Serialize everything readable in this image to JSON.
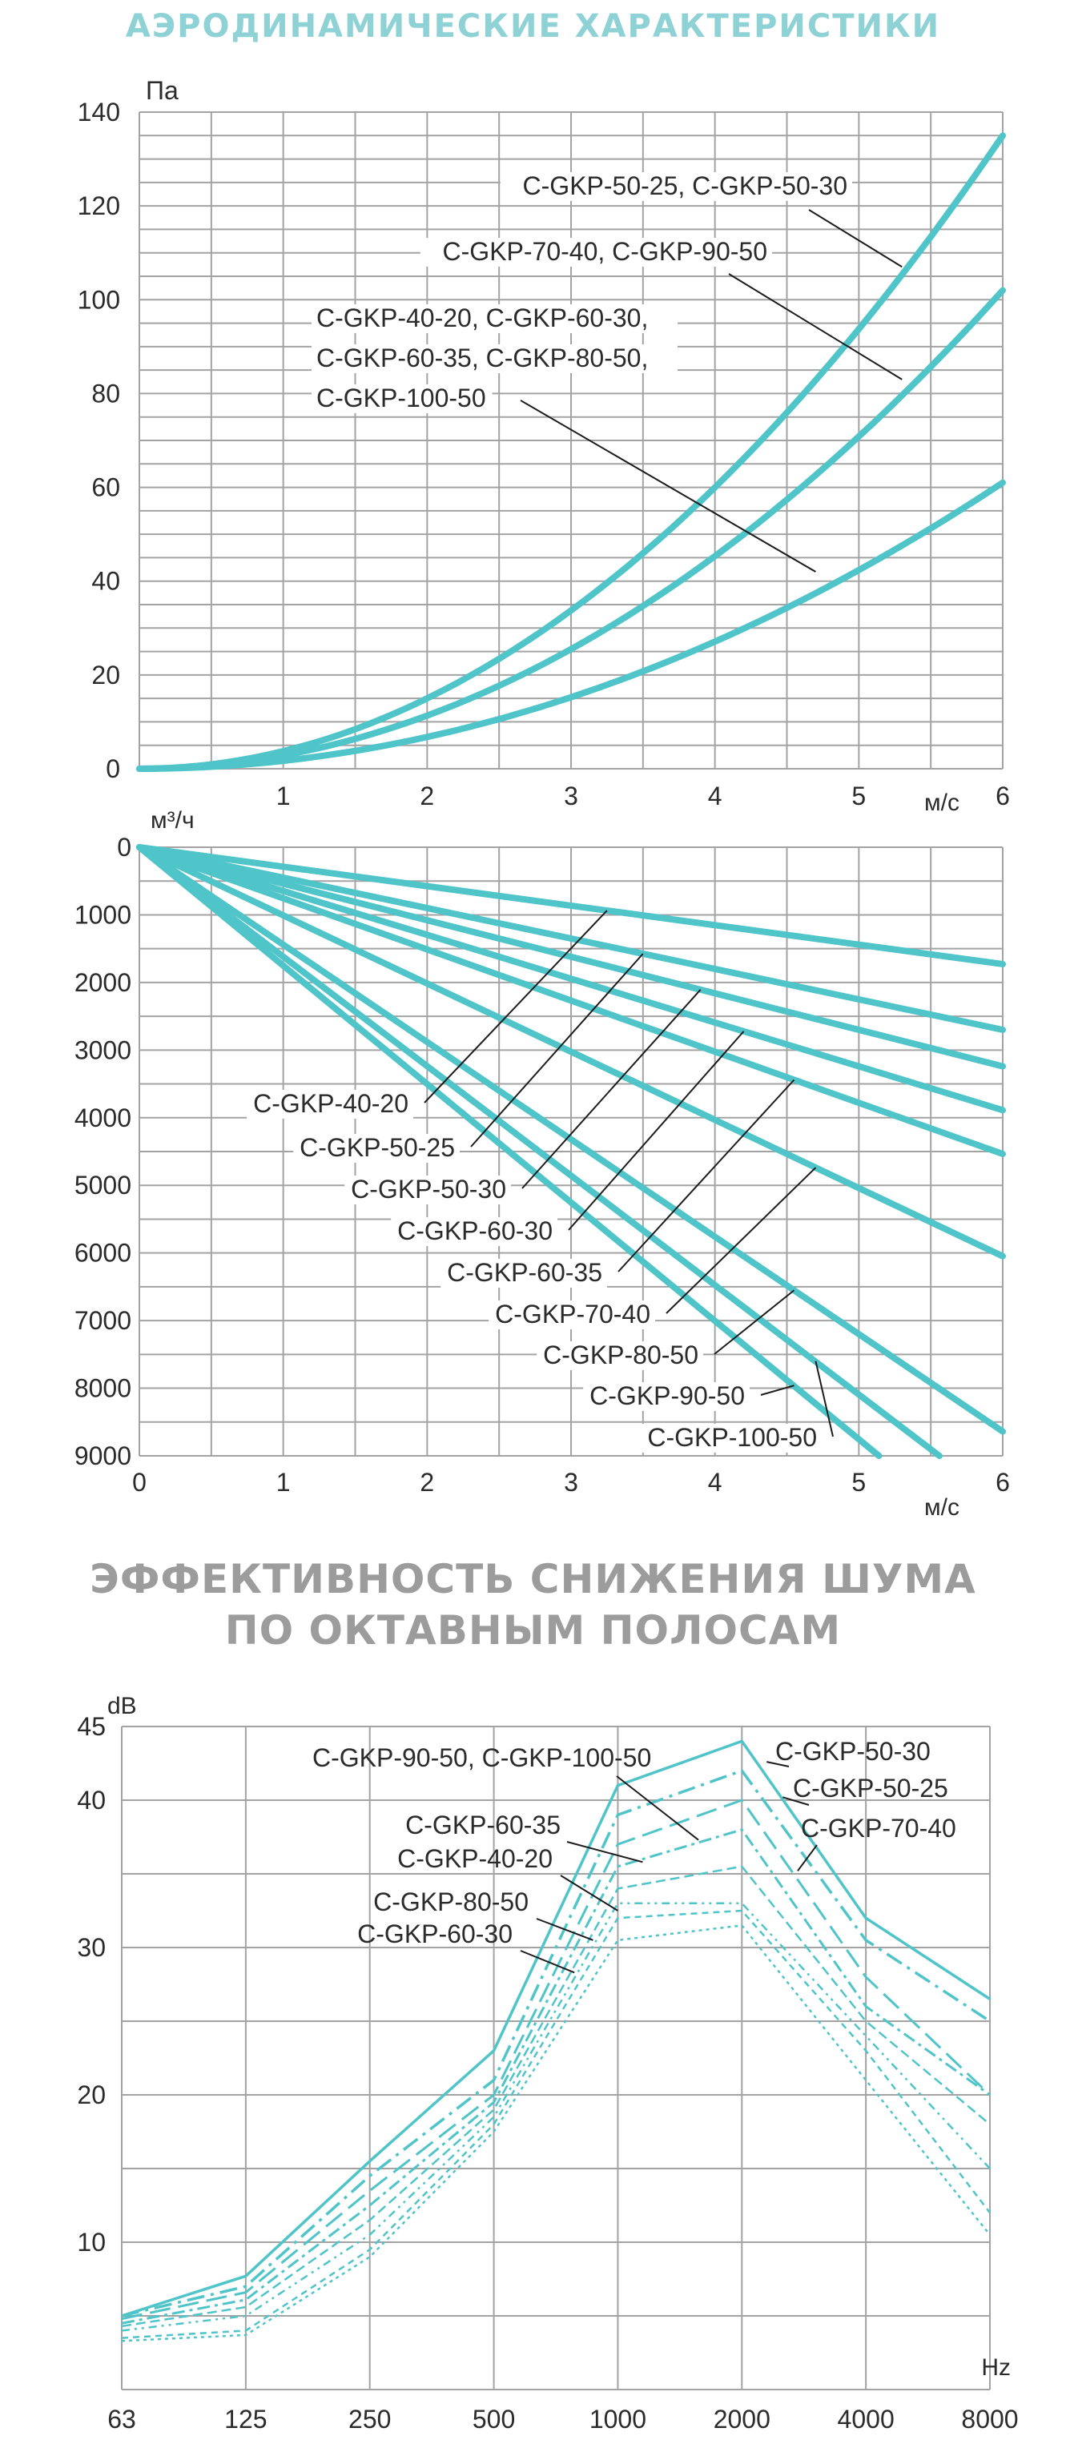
{
  "titles": {
    "aero": "АЭРОДИНАМИЧЕСКИЕ ХАРАКТЕРИСТИКИ",
    "noise_line1": "ЭФФЕКТИВНОСТЬ СНИЖЕНИЯ ШУМА",
    "noise_line2": "ПО ОКТАВНЫМ ПОЛОСАМ"
  },
  "colors": {
    "curve": "#4fc4c9",
    "grid": "#a3a3a3",
    "leader": "#1c1c1c"
  },
  "chart_data": [
    {
      "type": "line",
      "xlabel": "м/с",
      "ylabel": "Па",
      "xlim": [
        0,
        6
      ],
      "ylim": [
        0,
        140
      ],
      "x_ticks": [
        "1",
        "2",
        "3",
        "4",
        "5",
        "6"
      ],
      "y_ticks": [
        "0",
        "20",
        "40",
        "60",
        "80",
        "100",
        "120",
        "140"
      ],
      "grid": true,
      "series": [
        {
          "name": "C-GKP-50-25, C-GKP-50-30",
          "x": [
            0,
            1,
            2,
            3,
            4,
            5,
            6
          ],
          "y": [
            0,
            4,
            15,
            34,
            60,
            94,
            135
          ]
        },
        {
          "name": "C-GKP-70-40, C-GKP-90-50",
          "x": [
            0,
            1,
            2,
            3,
            4,
            5,
            6
          ],
          "y": [
            0,
            3,
            11,
            25,
            45,
            71,
            102
          ]
        },
        {
          "name": "C-GKP-40-20, C-GKP-60-30, C-GKP-60-35, C-GKP-80-50, C-GKP-100-50",
          "x": [
            0,
            1,
            2,
            3,
            4,
            5,
            6
          ],
          "y": [
            0,
            1.7,
            6.7,
            15,
            27,
            42,
            61
          ]
        }
      ],
      "annotations": [
        {
          "label": "C-GKP-50-25, C-GKP-50-30",
          "target_x": 5.3,
          "target_y": 107
        },
        {
          "label": "C-GKP-70-40, C-GKP-90-50",
          "target_x": 5.3,
          "target_y": 83
        },
        {
          "lines": [
            "C-GKP-40-20, C-GKP-60-30,",
            "C-GKP-60-35, C-GKP-80-50,",
            "C-GKP-100-50"
          ],
          "target_x": 4.7,
          "target_y": 42
        }
      ]
    },
    {
      "type": "line",
      "xlabel": "м/с",
      "ylabel": "м³/ч",
      "xlim": [
        0,
        6
      ],
      "ylim": [
        0,
        9000
      ],
      "y_inverted": true,
      "x_ticks": [
        "0",
        "1",
        "2",
        "3",
        "4",
        "5",
        "6"
      ],
      "y_ticks": [
        "0",
        "1000",
        "2000",
        "3000",
        "4000",
        "5000",
        "6000",
        "7000",
        "8000",
        "9000"
      ],
      "grid": true,
      "series": [
        {
          "name": "C-GKP-40-20",
          "x": [
            0,
            6
          ],
          "y": [
            0,
            1728
          ]
        },
        {
          "name": "C-GKP-50-25",
          "x": [
            0,
            6
          ],
          "y": [
            0,
            2700
          ]
        },
        {
          "name": "C-GKP-50-30",
          "x": [
            0,
            6
          ],
          "y": [
            0,
            3240
          ]
        },
        {
          "name": "C-GKP-60-30",
          "x": [
            0,
            6
          ],
          "y": [
            0,
            3888
          ]
        },
        {
          "name": "C-GKP-60-35",
          "x": [
            0,
            6
          ],
          "y": [
            0,
            4536
          ]
        },
        {
          "name": "C-GKP-70-40",
          "x": [
            0,
            6
          ],
          "y": [
            0,
            6048
          ]
        },
        {
          "name": "C-GKP-80-50",
          "x": [
            0,
            6
          ],
          "y": [
            0,
            8640
          ]
        },
        {
          "name": "C-GKP-90-50",
          "x": [
            0,
            5.14
          ],
          "y": [
            0,
            9000
          ]
        },
        {
          "name": "C-GKP-100-50",
          "x": [
            0,
            5.56
          ],
          "y": [
            0,
            9000
          ]
        }
      ],
      "annotations": [
        {
          "label": "C-GKP-40-20",
          "target_x": 3.25,
          "target_y": 936
        },
        {
          "label": "C-GKP-50-25",
          "target_x": 3.5,
          "target_y": 1575
        },
        {
          "label": "C-GKP-50-30",
          "target_x": 3.9,
          "target_y": 2106
        },
        {
          "label": "C-GKP-60-30",
          "target_x": 4.2,
          "target_y": 2722
        },
        {
          "label": "C-GKP-60-35",
          "target_x": 4.55,
          "target_y": 3440
        },
        {
          "label": "C-GKP-70-40",
          "target_x": 4.7,
          "target_y": 4738
        },
        {
          "label": "C-GKP-80-50",
          "target_x": 4.55,
          "target_y": 6552
        },
        {
          "label": "C-GKP-90-50",
          "target_x": 4.55,
          "target_y": 7960
        },
        {
          "label": "C-GKP-100-50",
          "target_x": 4.7,
          "target_y": 7600
        }
      ]
    },
    {
      "type": "line",
      "xlabel": "Hz",
      "ylabel": "dB",
      "categories": [
        "63",
        "125",
        "250",
        "500",
        "1000",
        "2000",
        "4000",
        "8000"
      ],
      "ylim": [
        0,
        45
      ],
      "y_ticks": [
        "10",
        "20",
        "30",
        "40",
        "45"
      ],
      "grid": true,
      "series": [
        {
          "name": "C-GKP-50-30",
          "values": [
            5,
            7.7,
            15.5,
            23,
            41,
            44,
            32,
            26.5
          ]
        },
        {
          "name": "C-GKP-50-25",
          "values": [
            5,
            7,
            14.5,
            21,
            39,
            42,
            30.5,
            25
          ]
        },
        {
          "name": "C-GKP-70-40",
          "values": [
            4.8,
            6.6,
            13.5,
            20,
            37,
            40,
            28,
            20
          ]
        },
        {
          "name": "C-GKP-90-50, C-GKP-100-50",
          "values": [
            4.5,
            6.1,
            12.5,
            19.5,
            35.5,
            38,
            26,
            20
          ]
        },
        {
          "name": "C-GKP-60-35",
          "values": [
            4.3,
            5.6,
            11.5,
            19,
            34,
            35.5,
            25,
            18
          ]
        },
        {
          "name": "C-GKP-40-20",
          "values": [
            4,
            5,
            10.5,
            18.5,
            33,
            33,
            24,
            15
          ]
        },
        {
          "name": "C-GKP-80-50",
          "values": [
            3.5,
            4,
            9.5,
            18,
            32,
            32.5,
            23,
            12
          ]
        },
        {
          "name": "C-GKP-60-30",
          "values": [
            3.3,
            3.7,
            9,
            17.5,
            30.5,
            31.5,
            21,
            10.5
          ]
        }
      ],
      "annotations": [
        {
          "label": "C-GKP-90-50, C-GKP-100-50",
          "target_x": 4.65,
          "target_y": 37.3
        },
        {
          "label": "C-GKP-50-30",
          "target_x": 5.2,
          "target_y": 42.6
        },
        {
          "label": "C-GKP-50-25",
          "target_x": 5.33,
          "target_y": 40.2
        },
        {
          "label": "C-GKP-70-40",
          "target_x": 5.45,
          "target_y": 35.2
        },
        {
          "label": "C-GKP-60-35",
          "target_x": 4.2,
          "target_y": 35.8
        },
        {
          "label": "C-GKP-40-20",
          "target_x": 4.0,
          "target_y": 32.5
        },
        {
          "label": "C-GKP-80-50",
          "target_x": 3.8,
          "target_y": 30.5
        },
        {
          "label": "C-GKP-60-30",
          "target_x": 3.65,
          "target_y": 28.3
        }
      ]
    }
  ]
}
